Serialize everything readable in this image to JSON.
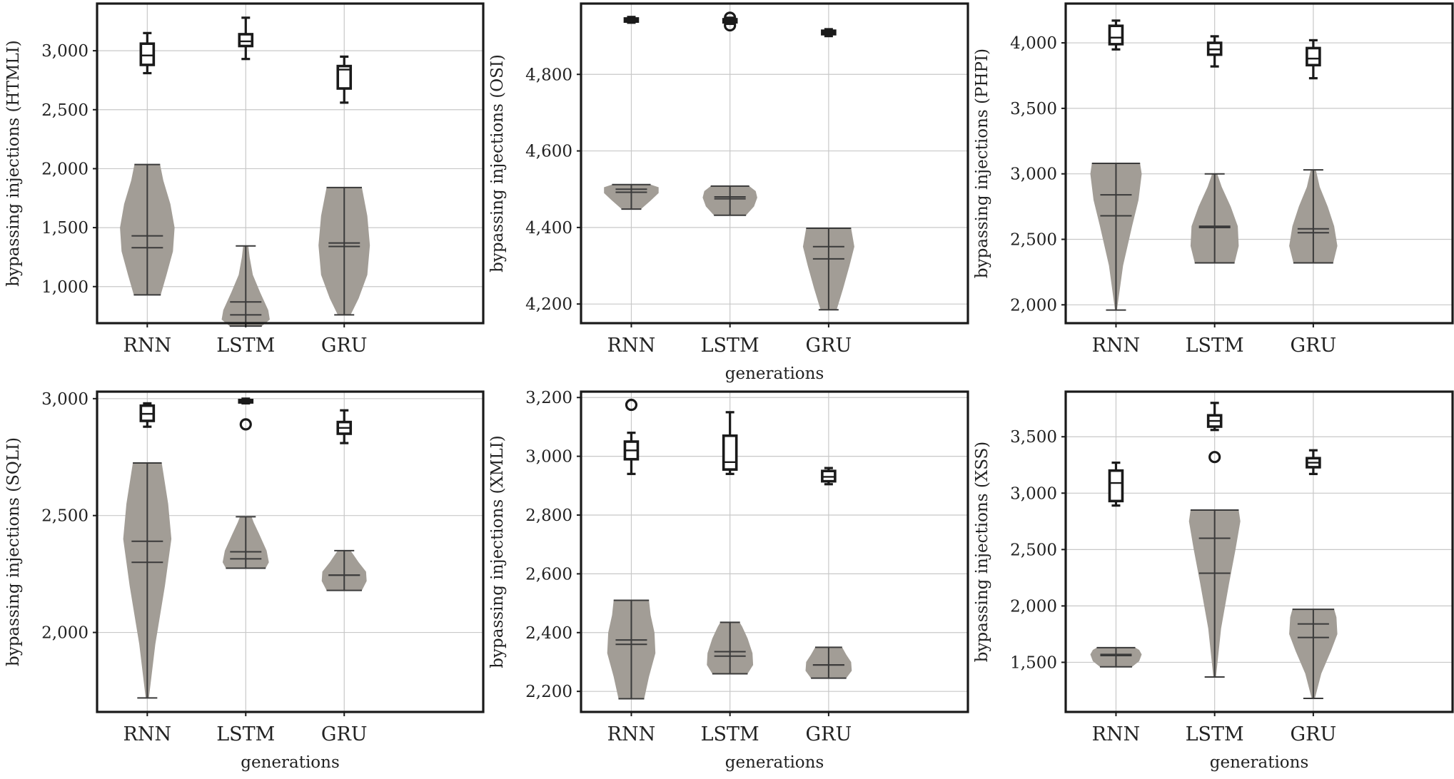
{
  "colors": {
    "violin": "#a29d96",
    "box_edge": "#1a1a1a",
    "grid": "#c8c8c8"
  },
  "chart_data": [
    {
      "type": "violin+box",
      "ylabel": "bypassing injections (HTMLI)",
      "xlabel": "",
      "categories": [
        "RNN",
        "LSTM",
        "GRU"
      ],
      "ylim": [
        690,
        3400
      ],
      "yticks": [
        1000,
        1500,
        2000,
        2500,
        3000
      ],
      "ytick_labels": [
        "1,000",
        "1,500",
        "2,000",
        "2,500",
        "3,000"
      ],
      "grid": true,
      "violin": [
        {
          "min": 930,
          "max": 2035,
          "mean": 1430,
          "median": 1330,
          "shape": [
            [
              930,
              0.42
            ],
            [
              1100,
              0.6
            ],
            [
              1300,
              0.8
            ],
            [
              1500,
              0.85
            ],
            [
              1700,
              0.72
            ],
            [
              1900,
              0.5
            ],
            [
              2035,
              0.4
            ]
          ]
        },
        {
          "min": 665,
          "max": 1345,
          "mean": 870,
          "median": 760,
          "shape": [
            [
              665,
              0.5
            ],
            [
              720,
              0.75
            ],
            [
              800,
              0.7
            ],
            [
              950,
              0.45
            ],
            [
              1100,
              0.22
            ],
            [
              1250,
              0.12
            ],
            [
              1345,
              0.08
            ]
          ]
        },
        {
          "min": 760,
          "max": 1840,
          "mean": 1370,
          "median": 1340,
          "shape": [
            [
              760,
              0.2
            ],
            [
              900,
              0.45
            ],
            [
              1100,
              0.72
            ],
            [
              1350,
              0.8
            ],
            [
              1600,
              0.72
            ],
            [
              1840,
              0.55
            ]
          ]
        }
      ],
      "box": [
        {
          "whislo": 2810,
          "q1": 2880,
          "median": 2960,
          "q3": 3060,
          "whishi": 3150,
          "fliers": []
        },
        {
          "whislo": 2930,
          "q1": 3040,
          "median": 3080,
          "q3": 3140,
          "whishi": 3280,
          "fliers": []
        },
        {
          "whislo": 2560,
          "q1": 2680,
          "median": 2840,
          "q3": 2870,
          "whishi": 2950,
          "fliers": []
        }
      ]
    },
    {
      "type": "violin+box",
      "ylabel": "bypassing injections (OSI)",
      "xlabel": "generations",
      "categories": [
        "RNN",
        "LSTM",
        "GRU"
      ],
      "ylim": [
        4150,
        4985
      ],
      "yticks": [
        4200,
        4400,
        4600,
        4800
      ],
      "ytick_labels": [
        "4,200",
        "4,400",
        "4,600",
        "4,800"
      ],
      "grid": true,
      "violin": [
        {
          "min": 4448,
          "max": 4512,
          "mean": 4500,
          "median": 4492,
          "shape": [
            [
              4448,
              0.3
            ],
            [
              4470,
              0.6
            ],
            [
              4490,
              0.85
            ],
            [
              4505,
              0.85
            ],
            [
              4512,
              0.6
            ]
          ]
        },
        {
          "min": 4432,
          "max": 4508,
          "mean": 4480,
          "median": 4475,
          "shape": [
            [
              4432,
              0.5
            ],
            [
              4455,
              0.75
            ],
            [
              4478,
              0.85
            ],
            [
              4495,
              0.8
            ],
            [
              4508,
              0.6
            ]
          ]
        },
        {
          "min": 4185,
          "max": 4398,
          "mean": 4350,
          "median": 4318,
          "shape": [
            [
              4185,
              0.25
            ],
            [
              4240,
              0.45
            ],
            [
              4300,
              0.65
            ],
            [
              4350,
              0.8
            ],
            [
              4398,
              0.7
            ]
          ]
        }
      ],
      "box": [
        {
          "whislo": 4935,
          "q1": 4938,
          "median": 4942,
          "q3": 4946,
          "whishi": 4950,
          "fliers": []
        },
        {
          "whislo": 4932,
          "q1": 4936,
          "median": 4940,
          "q3": 4944,
          "whishi": 4948,
          "fliers": [
            4928,
            4948
          ]
        },
        {
          "whislo": 4900,
          "q1": 4905,
          "median": 4910,
          "q3": 4914,
          "whishi": 4918,
          "fliers": []
        }
      ]
    },
    {
      "type": "violin+box",
      "ylabel": "bypassing injections (PHPI)",
      "xlabel": "",
      "categories": [
        "RNN",
        "LSTM",
        "GRU"
      ],
      "ylim": [
        1860,
        4300
      ],
      "yticks": [
        2000,
        2500,
        3000,
        3500,
        4000
      ],
      "ytick_labels": [
        "2,000",
        "2,500",
        "3,000",
        "3,500",
        "4,000"
      ],
      "grid": true,
      "violin": [
        {
          "min": 1960,
          "max": 3080,
          "mean": 2840,
          "median": 2680,
          "shape": [
            [
              1960,
              0.03
            ],
            [
              2300,
              0.22
            ],
            [
              2600,
              0.5
            ],
            [
              2800,
              0.7
            ],
            [
              3000,
              0.8
            ],
            [
              3080,
              0.75
            ]
          ]
        },
        {
          "min": 2320,
          "max": 3000,
          "mean": 2600,
          "median": 2590,
          "shape": [
            [
              2320,
              0.62
            ],
            [
              2450,
              0.75
            ],
            [
              2600,
              0.72
            ],
            [
              2750,
              0.5
            ],
            [
              2900,
              0.22
            ],
            [
              3000,
              0.08
            ]
          ]
        },
        {
          "min": 2320,
          "max": 3030,
          "mean": 2580,
          "median": 2550,
          "shape": [
            [
              2320,
              0.62
            ],
            [
              2450,
              0.75
            ],
            [
              2600,
              0.65
            ],
            [
              2750,
              0.45
            ],
            [
              2900,
              0.2
            ],
            [
              3030,
              0.08
            ]
          ]
        }
      ],
      "box": [
        {
          "whislo": 3950,
          "q1": 3990,
          "median": 4040,
          "q3": 4130,
          "whishi": 4170,
          "fliers": []
        },
        {
          "whislo": 3820,
          "q1": 3910,
          "median": 3950,
          "q3": 4000,
          "whishi": 4050,
          "fliers": []
        },
        {
          "whislo": 3730,
          "q1": 3830,
          "median": 3880,
          "q3": 3960,
          "whishi": 4020,
          "fliers": []
        }
      ]
    },
    {
      "type": "violin+box",
      "ylabel": "bypassing injections (SQLI)",
      "xlabel": "generations",
      "categories": [
        "RNN",
        "LSTM",
        "GRU"
      ],
      "ylim": [
        1660,
        3030
      ],
      "yticks": [
        2000,
        2500,
        3000
      ],
      "ytick_labels": [
        "2,000",
        "2,500",
        "3,000"
      ],
      "grid": true,
      "violin": [
        {
          "min": 1720,
          "max": 2725,
          "mean": 2390,
          "median": 2300,
          "shape": [
            [
              1720,
              0.05
            ],
            [
              1950,
              0.25
            ],
            [
              2200,
              0.55
            ],
            [
              2400,
              0.75
            ],
            [
              2550,
              0.65
            ],
            [
              2725,
              0.45
            ]
          ]
        },
        {
          "min": 2275,
          "max": 2495,
          "mean": 2345,
          "median": 2315,
          "shape": [
            [
              2275,
              0.62
            ],
            [
              2300,
              0.72
            ],
            [
              2350,
              0.65
            ],
            [
              2420,
              0.42
            ],
            [
              2470,
              0.25
            ],
            [
              2495,
              0.18
            ]
          ]
        },
        {
          "min": 2180,
          "max": 2350,
          "mean": 2245,
          "median": 2245,
          "shape": [
            [
              2180,
              0.55
            ],
            [
              2220,
              0.7
            ],
            [
              2260,
              0.68
            ],
            [
              2300,
              0.45
            ],
            [
              2330,
              0.3
            ],
            [
              2350,
              0.2
            ]
          ]
        }
      ],
      "box": [
        {
          "whislo": 2880,
          "q1": 2905,
          "median": 2935,
          "q3": 2970,
          "whishi": 2980,
          "fliers": []
        },
        {
          "whislo": 2980,
          "q1": 2984,
          "median": 2990,
          "q3": 2994,
          "whishi": 3000,
          "fliers": [
            2890
          ]
        },
        {
          "whislo": 2810,
          "q1": 2850,
          "median": 2875,
          "q3": 2900,
          "whishi": 2950,
          "fliers": []
        }
      ]
    },
    {
      "type": "violin+box",
      "ylabel": "bypassing injections (XMLI)",
      "xlabel": "generations",
      "categories": [
        "RNN",
        "LSTM",
        "GRU"
      ],
      "ylim": [
        2130,
        3220
      ],
      "yticks": [
        2200,
        2400,
        2600,
        2800,
        3000,
        3200
      ],
      "ytick_labels": [
        "2,200",
        "2,400",
        "2,600",
        "2,800",
        "3,000",
        "3,200"
      ],
      "grid": true,
      "violin": [
        {
          "min": 2175,
          "max": 2510,
          "mean": 2375,
          "median": 2360,
          "shape": [
            [
              2175,
              0.4
            ],
            [
              2250,
              0.55
            ],
            [
              2330,
              0.75
            ],
            [
              2400,
              0.72
            ],
            [
              2460,
              0.6
            ],
            [
              2510,
              0.55
            ]
          ]
        },
        {
          "min": 2260,
          "max": 2435,
          "mean": 2335,
          "median": 2320,
          "shape": [
            [
              2260,
              0.55
            ],
            [
              2290,
              0.72
            ],
            [
              2330,
              0.7
            ],
            [
              2380,
              0.55
            ],
            [
              2420,
              0.38
            ],
            [
              2435,
              0.3
            ]
          ]
        },
        {
          "min": 2245,
          "max": 2350,
          "mean": 2290,
          "median": 2290,
          "shape": [
            [
              2245,
              0.55
            ],
            [
              2270,
              0.72
            ],
            [
              2300,
              0.7
            ],
            [
              2325,
              0.55
            ],
            [
              2350,
              0.42
            ]
          ]
        }
      ],
      "box": [
        {
          "whislo": 2940,
          "q1": 2990,
          "median": 3020,
          "q3": 3050,
          "whishi": 3080,
          "fliers": [
            3175
          ]
        },
        {
          "whislo": 2940,
          "q1": 2955,
          "median": 2980,
          "q3": 3070,
          "whishi": 3150,
          "fliers": []
        },
        {
          "whislo": 2905,
          "q1": 2915,
          "median": 2930,
          "q3": 2950,
          "whishi": 2960,
          "fliers": []
        }
      ]
    },
    {
      "type": "violin+box",
      "ylabel": "bypassing injections (XSS)",
      "xlabel": "generations",
      "categories": [
        "RNN",
        "LSTM",
        "GRU"
      ],
      "ylim": [
        1060,
        3900
      ],
      "yticks": [
        1500,
        2000,
        2500,
        3000,
        3500
      ],
      "ytick_labels": [
        "1,500",
        "2,000",
        "2,500",
        "3,000",
        "3,500"
      ],
      "grid": true,
      "violin": [
        {
          "min": 1460,
          "max": 1630,
          "mean": 1570,
          "median": 1560,
          "shape": [
            [
              1460,
              0.5
            ],
            [
              1510,
              0.72
            ],
            [
              1570,
              0.8
            ],
            [
              1610,
              0.72
            ],
            [
              1630,
              0.6
            ]
          ]
        },
        {
          "min": 1370,
          "max": 2850,
          "mean": 2600,
          "median": 2290,
          "shape": [
            [
              1370,
              0.04
            ],
            [
              1800,
              0.2
            ],
            [
              2200,
              0.45
            ],
            [
              2500,
              0.65
            ],
            [
              2750,
              0.8
            ],
            [
              2850,
              0.75
            ]
          ]
        },
        {
          "min": 1180,
          "max": 1970,
          "mean": 1840,
          "median": 1720,
          "shape": [
            [
              1180,
              0.05
            ],
            [
              1400,
              0.25
            ],
            [
              1600,
              0.55
            ],
            [
              1750,
              0.75
            ],
            [
              1900,
              0.72
            ],
            [
              1970,
              0.65
            ]
          ]
        }
      ],
      "box": [
        {
          "whislo": 2890,
          "q1": 2930,
          "median": 3090,
          "q3": 3200,
          "whishi": 3270,
          "fliers": []
        },
        {
          "whislo": 3560,
          "q1": 3590,
          "median": 3640,
          "q3": 3690,
          "whishi": 3800,
          "fliers": [
            3320
          ]
        },
        {
          "whislo": 3170,
          "q1": 3230,
          "median": 3270,
          "q3": 3310,
          "whishi": 3380,
          "fliers": []
        }
      ]
    }
  ]
}
